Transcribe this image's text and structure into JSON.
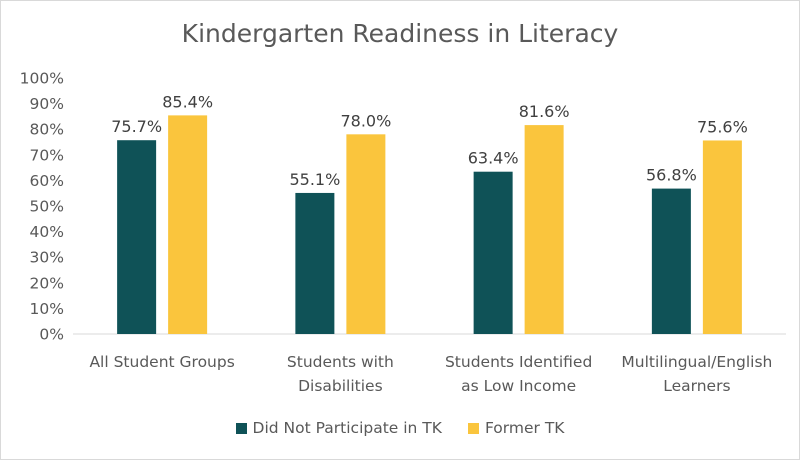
{
  "chart_data": {
    "type": "bar",
    "title": "Kindergarten Readiness in Literacy",
    "categories": [
      [
        "All Student Groups"
      ],
      [
        "Students with",
        "Disabilities"
      ],
      [
        "Students Identified",
        "as Low Income"
      ],
      [
        "Multilingual/English",
        "Learners"
      ]
    ],
    "series": [
      {
        "name": "Did Not Participate in TK",
        "color": "#0f5257",
        "values": [
          75.7,
          55.1,
          63.4,
          56.8
        ],
        "labels": [
          "75.7%",
          "55.1%",
          "63.4%",
          "56.8%"
        ]
      },
      {
        "name": "Former TK",
        "color": "#fac53d",
        "values": [
          85.4,
          78.0,
          81.6,
          75.6
        ],
        "labels": [
          "85.4%",
          "78.0%",
          "81.6%",
          "75.6%"
        ]
      }
    ],
    "yticks": [
      "0%",
      "10%",
      "20%",
      "30%",
      "40%",
      "50%",
      "60%",
      "70%",
      "80%",
      "90%",
      "100%"
    ],
    "ylim": [
      0,
      100
    ],
    "grid": false,
    "legend_position": "bottom"
  }
}
